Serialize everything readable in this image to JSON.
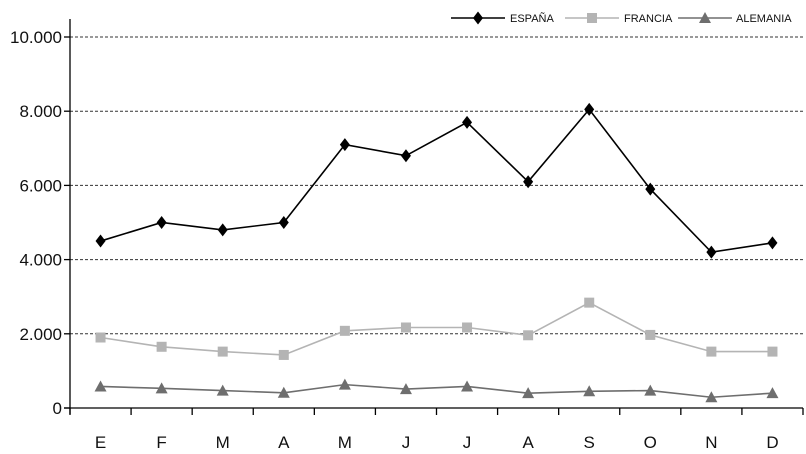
{
  "chart_data": {
    "type": "line",
    "categories": [
      "E",
      "F",
      "M",
      "A",
      "M",
      "J",
      "J",
      "A",
      "S",
      "O",
      "N",
      "D"
    ],
    "series": [
      {
        "name": "ESPAÑA",
        "color": "#000000",
        "marker": "diamond",
        "values": [
          4500,
          5000,
          4800,
          5000,
          7100,
          6800,
          7700,
          6100,
          8050,
          5900,
          4200,
          4450
        ]
      },
      {
        "name": "FRANCIA",
        "color": "#b4b4b4",
        "marker": "square",
        "values": [
          1900,
          1650,
          1520,
          1430,
          2080,
          2170,
          2170,
          1960,
          2840,
          1970,
          1520,
          1520
        ]
      },
      {
        "name": "ALEMANIA",
        "color": "#6e6e6e",
        "marker": "triangle",
        "values": [
          580,
          530,
          470,
          410,
          630,
          510,
          580,
          400,
          450,
          470,
          290,
          400
        ]
      }
    ],
    "yticks": [
      {
        "value": 0,
        "label": "0"
      },
      {
        "value": 2000,
        "label": "2.000"
      },
      {
        "value": 4000,
        "label": "4.000"
      },
      {
        "value": 6000,
        "label": "6.000"
      },
      {
        "value": 8000,
        "label": "8.000"
      },
      {
        "value": 10000,
        "label": "10.000"
      }
    ],
    "ylim": [
      0,
      10000
    ],
    "grid": "horizontal-dashed",
    "legend": "top-right",
    "title": "",
    "xlabel": "",
    "ylabel": ""
  }
}
